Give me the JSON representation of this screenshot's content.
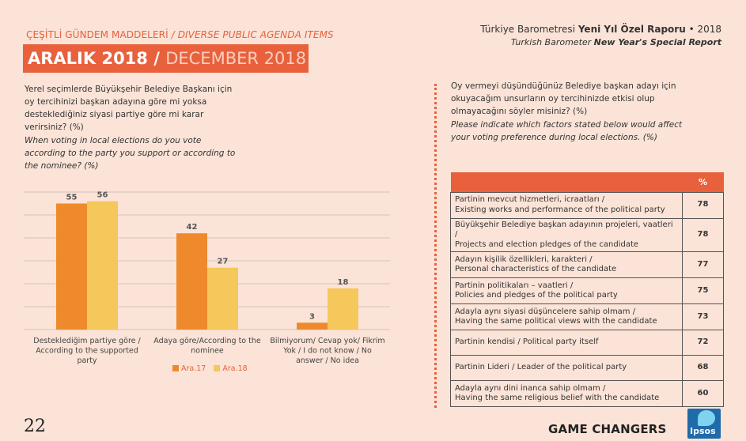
{
  "header": {
    "section_tr": "ÇEŞİTLİ GÜNDEM MADDELERİ",
    "section_sep": " / ",
    "section_en": "DIVERSE PUBLIC AGENDA ITEMS",
    "date_tr": "ARALIK 2018",
    "date_sep": " / ",
    "date_en": "DECEMBER 2018",
    "report_prefix": "Türkiye Barometresi ",
    "report_bold": "Yeni Yıl Özel Raporu",
    "report_suffix": " • 2018",
    "report_en_prefix": "Turkish Barometer ",
    "report_en_bold": "New Year's Special Report"
  },
  "left_question": {
    "tr": "Yerel seçimlerde Büyükşehir Belediye Başkanı için oy tercihinizi başkan adayına göre mi yoksa desteklediğiniz siyasi partiye göre mi karar verirsiniz? (%)",
    "en": "When voting in local elections do you vote according to the party you support or according to the nominee? (%)"
  },
  "chart_data": {
    "type": "bar",
    "categories": [
      [
        "Desteklediğim partiye göre /",
        "According to the supported",
        "party"
      ],
      [
        "Adaya göre/According to the",
        "nominee"
      ],
      [
        "Bilmiyorum/ Cevap yok/ Fikrim",
        "Yok / I do not know / No",
        "answer / No idea"
      ]
    ],
    "series": [
      {
        "name": "Ara.17",
        "values": [
          55,
          42,
          3
        ],
        "color": "#ee8a2c"
      },
      {
        "name": "Ara.18",
        "values": [
          56,
          27,
          18
        ],
        "color": "#f6c75a"
      }
    ],
    "ylim": [
      0,
      60
    ],
    "grid": true,
    "legend": "bottom"
  },
  "right_question": {
    "tr": "Oy vermeyi düşündüğünüz Belediye  başkan adayı için okuyacağım unsurların oy tercihinizde etkisi olup olmayacağını söyler misiniz? (%)",
    "en": "Please indicate which factors stated below would affect your voting preference during local elections. (%)"
  },
  "table": {
    "header_label": "",
    "header_value": "%",
    "rows": [
      {
        "tr": "Partinin mevcut hizmetleri, icraatları /",
        "en": "Existing works and performance of the political  party",
        "value": "78"
      },
      {
        "tr": "Büyükşehir Belediye başkan adayının projeleri, vaatleri /",
        "en": "Projects and election  pledges of the candidate",
        "value": "78"
      },
      {
        "tr": "Adayın kişilik özellikleri, karakteri /",
        "en": "Personal characteristics of the candidate",
        "value": "77"
      },
      {
        "tr": "Partinin politikaları – vaatleri /",
        "en": "Policies and pledges of the political party",
        "value": "75"
      },
      {
        "tr": "Adayla aynı siyasi düşüncelere sahip olmam /",
        "en": "Having the same political views with the candidate",
        "value": "73"
      },
      {
        "tr": "Partinin kendisi / Political party itself",
        "en": "",
        "value": "72"
      },
      {
        "tr": "Partinin Lideri / Leader of the political party",
        "en": "",
        "value": "68"
      },
      {
        "tr": "Adayla aynı dini inanca sahip olmam /",
        "en": "Having the same religious belief with the candidate",
        "value": "60"
      }
    ]
  },
  "footer": {
    "page_number": "22",
    "tagline": "GAME CHANGERS",
    "logo_text": "Ipsos"
  }
}
